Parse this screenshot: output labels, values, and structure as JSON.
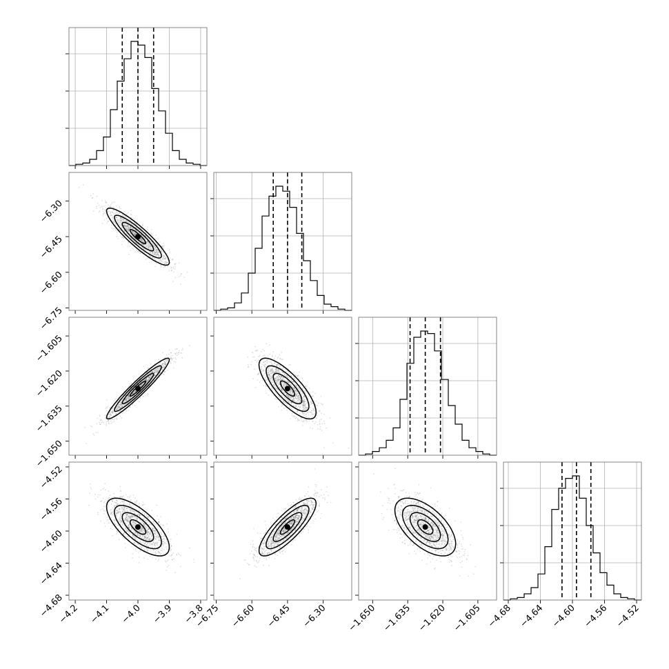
{
  "chart_data": {
    "type": "corner",
    "grid": true,
    "colors": {
      "line": "#000000",
      "grid": "#b0b0b0",
      "frame": "#666666",
      "points": "#555555"
    },
    "parameters": [
      {
        "range": [
          -4.22,
          -3.78
        ],
        "median": -4.0,
        "quantiles": [
          -4.05,
          -4.0,
          -3.95
        ],
        "ticks": [
          -4.2,
          -4.1,
          -4.0,
          -3.9,
          -3.8
        ],
        "tick_labels": [
          "−4.2",
          "−4.1",
          "−4.0",
          "−3.9",
          "−3.8"
        ],
        "histogram": [
          0,
          0.01,
          0.02,
          0.05,
          0.12,
          0.23,
          0.45,
          0.68,
          0.86,
          1.0,
          0.97,
          0.87,
          0.62,
          0.44,
          0.26,
          0.12,
          0.05,
          0.02,
          0.01,
          0
        ]
      },
      {
        "range": [
          -6.76,
          -6.18
        ],
        "median": -6.45,
        "quantiles": [
          -6.51,
          -6.45,
          -6.39
        ],
        "ticks": [
          -6.75,
          -6.6,
          -6.45,
          -6.3
        ],
        "tick_labels": [
          "−6.75",
          "−6.60",
          "−6.45",
          "−6.30"
        ],
        "histogram": [
          0,
          0.01,
          0.02,
          0.06,
          0.14,
          0.3,
          0.5,
          0.76,
          0.92,
          1.0,
          0.96,
          0.83,
          0.62,
          0.4,
          0.24,
          0.12,
          0.05,
          0.03,
          0.01,
          0
        ]
      },
      {
        "range": [
          -1.656,
          -1.597
        ],
        "median": -1.6275,
        "quantiles": [
          -1.634,
          -1.6275,
          -1.621
        ],
        "ticks": [
          -1.65,
          -1.635,
          -1.62,
          -1.605
        ],
        "tick_labels": [
          "−1.650",
          "−1.635",
          "−1.620",
          "−1.605"
        ],
        "histogram": [
          0,
          0.01,
          0.03,
          0.06,
          0.12,
          0.22,
          0.45,
          0.74,
          0.95,
          1.0,
          0.98,
          0.84,
          0.61,
          0.4,
          0.25,
          0.12,
          0.06,
          0.03,
          0.01,
          0
        ]
      },
      {
        "range": [
          -4.686,
          -4.514
        ],
        "median": -4.595,
        "quantiles": [
          -4.613,
          -4.595,
          -4.577
        ],
        "ticks": [
          -4.68,
          -4.64,
          -4.6,
          -4.56,
          -4.52
        ],
        "tick_labels": [
          "−4.68",
          "−4.64",
          "−4.60",
          "−4.56",
          "−4.52"
        ],
        "histogram": [
          0,
          0.01,
          0.02,
          0.05,
          0.1,
          0.21,
          0.43,
          0.73,
          0.9,
          0.98,
          1.0,
          0.82,
          0.6,
          0.38,
          0.22,
          0.12,
          0.05,
          0.02,
          0.01,
          0
        ]
      }
    ],
    "correlations": [
      [
        1.0,
        -0.9,
        0.95,
        -0.7
      ],
      [
        -0.9,
        1.0,
        -0.78,
        0.82
      ],
      [
        0.95,
        -0.78,
        1.0,
        -0.58
      ],
      [
        -0.7,
        0.82,
        -0.58,
        1.0
      ]
    ],
    "contour_levels_sigma": [
      0.5,
      1.0,
      1.5,
      2.0
    ]
  }
}
